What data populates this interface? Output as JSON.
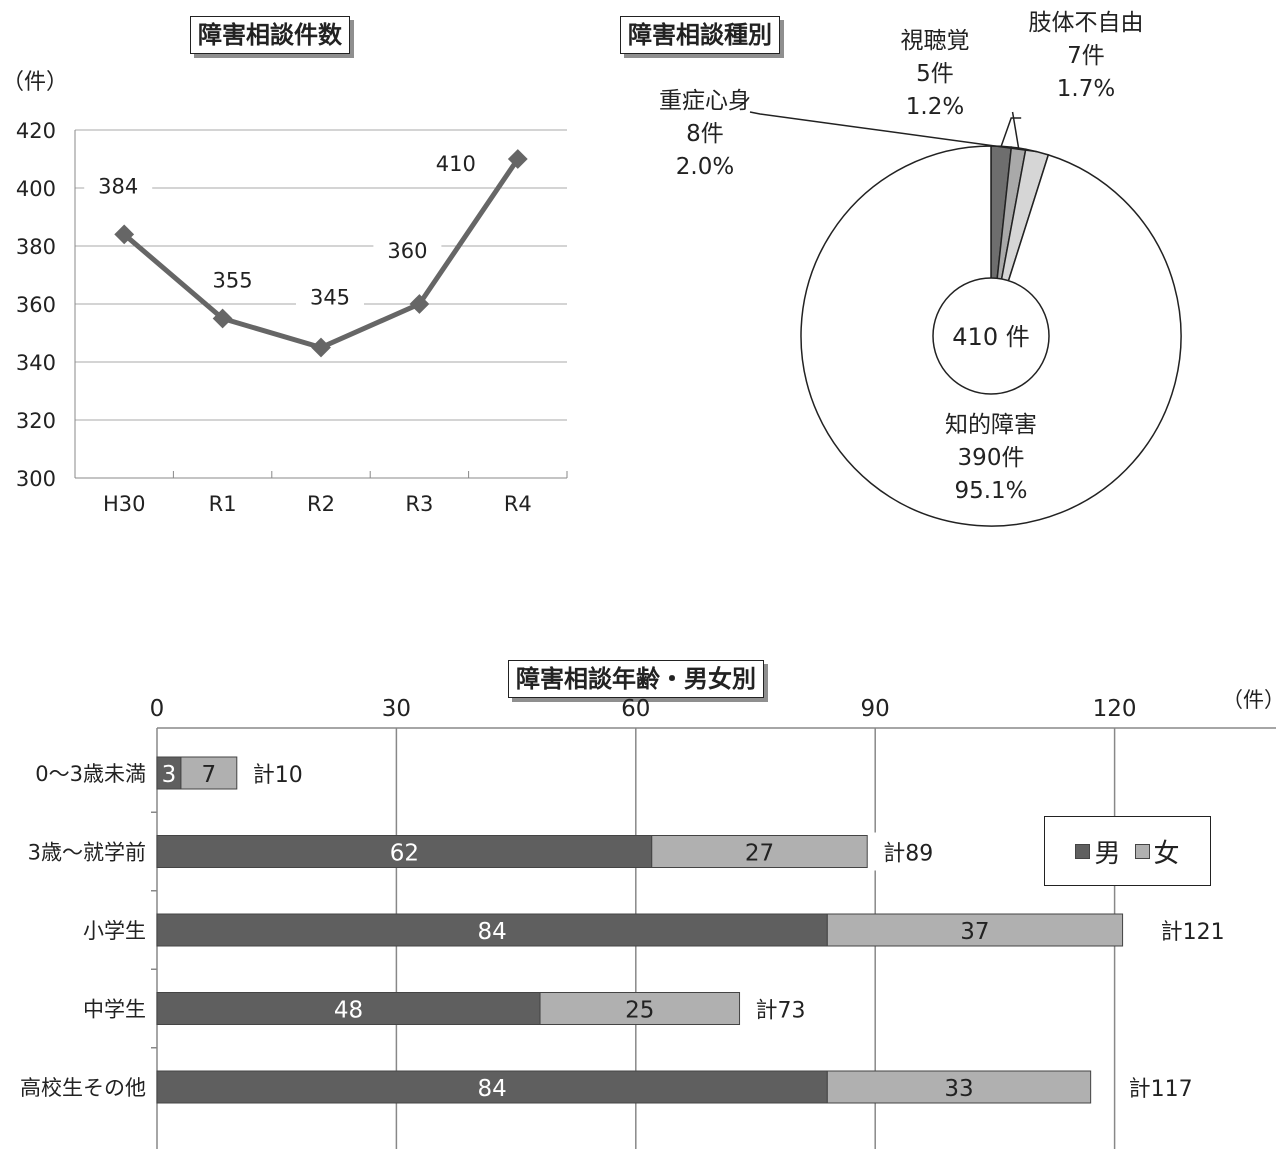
{
  "chart_data": [
    {
      "type": "line",
      "title": "障害相談件数",
      "unit_label": "（件）",
      "categories": [
        "H30",
        "R1",
        "R2",
        "R3",
        "R4"
      ],
      "values": [
        384,
        355,
        345,
        360,
        410
      ],
      "ylim": [
        300,
        420
      ],
      "yticks": [
        300,
        320,
        340,
        360,
        380,
        400,
        420
      ],
      "grid": true,
      "color": "#666666"
    },
    {
      "type": "pie",
      "title": "障害相談種別",
      "center_label": "410 件",
      "slices": [
        {
          "name": "肢体不自由",
          "count": "7件",
          "percent": "1.7%",
          "value": 7,
          "color": "#6e6e6e"
        },
        {
          "name": "視聴覚",
          "count": "5件",
          "percent": "1.2%",
          "value": 5,
          "color": "#a9a9a9"
        },
        {
          "name": "重症心身",
          "count": "8件",
          "percent": "2.0%",
          "value": 8,
          "color": "#d6d6d6"
        },
        {
          "name": "知的障害",
          "count": "390件",
          "percent": "95.1%",
          "value": 390,
          "color": "#ffffff"
        }
      ]
    },
    {
      "type": "bar",
      "orientation": "horizontal",
      "stacked": true,
      "title": "障害相談年齢・男女別",
      "unit_label": "（件）",
      "categories": [
        "0～3歳未満",
        "3歳～就学前",
        "小学生",
        "中学生",
        "高校生その他"
      ],
      "series": [
        {
          "name": "男",
          "values": [
            3,
            62,
            84,
            48,
            84
          ],
          "color": "#5f5f5f"
        },
        {
          "name": "女",
          "values": [
            7,
            27,
            37,
            25,
            33
          ],
          "color": "#b0b0b0"
        }
      ],
      "totals": [
        "計10",
        "計89",
        "計121",
        "計73",
        "計117"
      ],
      "xlim": [
        0,
        140
      ],
      "xticks": [
        0,
        30,
        60,
        90,
        120
      ],
      "legend": "right",
      "grid": true
    }
  ]
}
